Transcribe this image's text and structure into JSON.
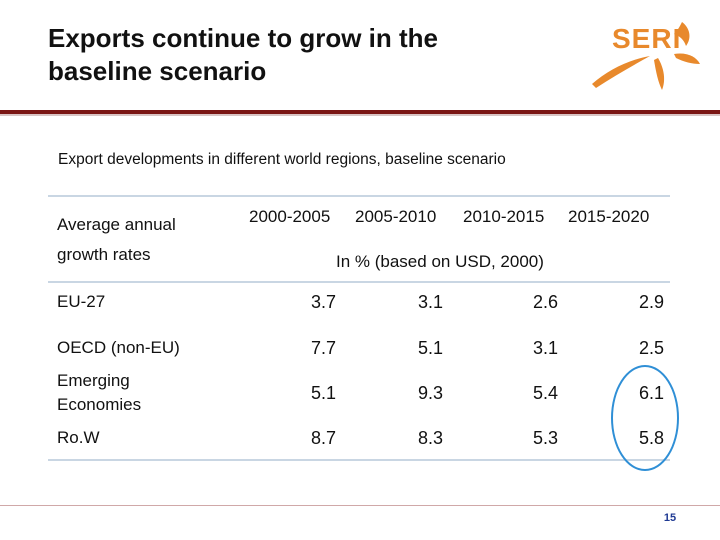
{
  "slide": {
    "title_line1": "Exports continue to grow in the",
    "title_line2": "baseline scenario",
    "logo_text": "SERI",
    "subtitle": "Export developments in different world regions, baseline scenario",
    "page_number": "15",
    "brand_color": "#e8892c",
    "accent_color": "#7a1614",
    "highlight_color": "#2f8fd6"
  },
  "table": {
    "header_label_line1": "Average annual",
    "header_label_line2": "growth rates",
    "periods": [
      "2000-2005",
      "2005-2010",
      "2010-2015",
      "2015-2020"
    ],
    "unit_note": "In % (based on USD, 2000)",
    "rows": [
      {
        "label": "EU-27",
        "values": [
          "3.7",
          "3.1",
          "2.6",
          "2.9"
        ]
      },
      {
        "label": "OECD (non-EU)",
        "values": [
          "7.7",
          "5.1",
          "3.1",
          "2.5"
        ]
      },
      {
        "label": "Emerging Economies",
        "values": [
          "5.1",
          "9.3",
          "5.4",
          "6.1"
        ]
      },
      {
        "label": "Ro.W",
        "values": [
          "8.7",
          "8.3",
          "5.3",
          "5.8"
        ]
      }
    ]
  }
}
